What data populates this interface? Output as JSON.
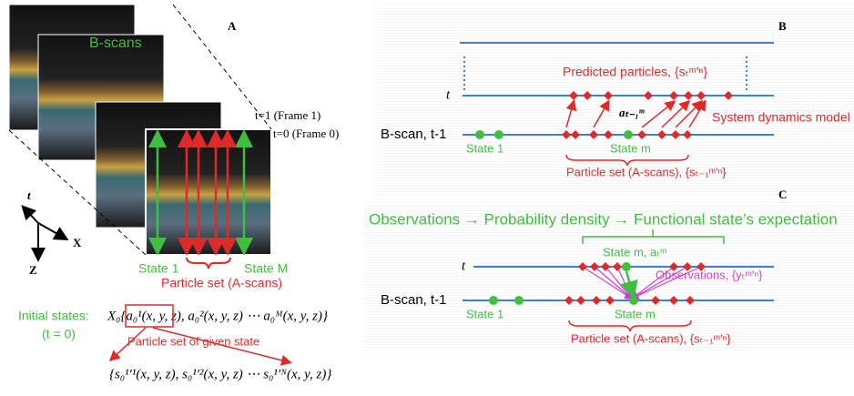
{
  "panel_a": {
    "label": "A",
    "bscans": "B-scans",
    "frame1": "t=1 (Frame 1)",
    "frame0": "t=0 (Frame 0)",
    "axis_t": "t",
    "axis_x": "X",
    "axis_z": "Z",
    "state_1": "State 1",
    "state_m": "State M",
    "particle_set": "Particle set (A-scans)",
    "initial_states": "Initial states:",
    "t_zero": "(t = 0)",
    "initial_formula": "X₀{a₀¹(x, y, z),  a₀²(x, y, z)  ⋯  a₀ᴹ(x, y, z)}",
    "given_state": "Particle set of given state",
    "particle_formula": "{s₀¹′¹(x, y, z),  s₀¹′²(x, y, z)  ⋯  s₀¹′ᴺ(x, y, z)}"
  },
  "panel_b": {
    "label": "B",
    "predicted": "Predicted particles, {sₜᵐ′ⁿ}",
    "t": "t",
    "dynamics": "System dynamics model",
    "a_prev": "aₜ₋₁ᵐ",
    "bscan": "B-scan, t-1",
    "state_1": "State 1",
    "state_m": "State m",
    "particle_set": "Particle set (A-scans), {sₜ₋₁ᵐ′ⁿ}"
  },
  "panel_c": {
    "label": "C",
    "headline": "Observations → Probability density → Functional state’s expectation",
    "state_m_top": "State m, aₜᵐ",
    "t": "t",
    "observations": "Observations, {yₜᵐ′ⁿ}",
    "bscan": "B-scan, t-1",
    "state_1": "State 1",
    "state_m": "State m",
    "particle_set": "Particle set (A-scans), {sₜ₋₁ᵐ′ⁿ}"
  }
}
